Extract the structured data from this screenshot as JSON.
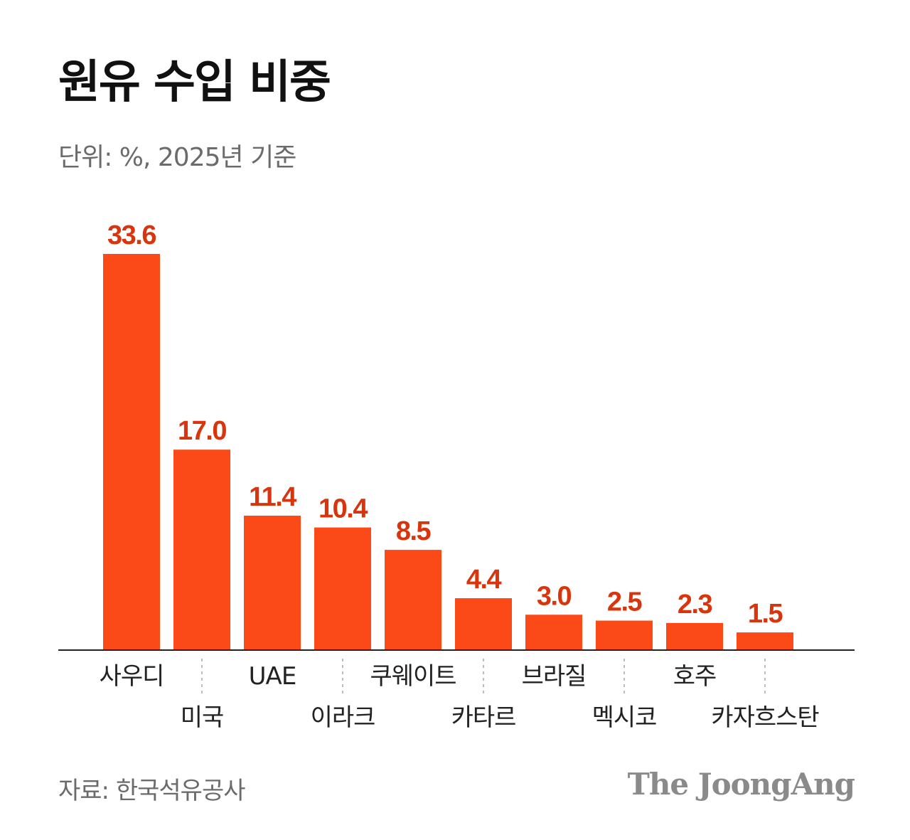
{
  "header": {
    "title": "원유 수입 비중",
    "subtitle": "단위: %, 2025년 기준"
  },
  "footer": {
    "source": "자료: 한국석유공사",
    "brand": "The JoongAng"
  },
  "colors": {
    "bar": "#fb4a18",
    "value_label": "#d9340b",
    "axis": "#222222",
    "divider": "#bdbdbd",
    "category_label": "#222222"
  },
  "chart_data": {
    "type": "bar",
    "title": "원유 수입 비중",
    "subtitle": "단위: %, 2025년 기준",
    "xlabel": "",
    "ylabel": "",
    "grid": false,
    "categories": [
      "사우디",
      "미국",
      "UAE",
      "이라크",
      "쿠웨이트",
      "카타르",
      "브라질",
      "멕시코",
      "호주",
      "카자흐스탄"
    ],
    "values": [
      33.6,
      17.0,
      11.4,
      10.4,
      8.5,
      4.4,
      3.0,
      2.5,
      2.3,
      1.5
    ],
    "value_labels": [
      "33.6",
      "17.0",
      "11.4",
      "10.4",
      "8.5",
      "4.4",
      "3.0",
      "2.5",
      "2.3",
      "1.5"
    ],
    "ylim": [
      0,
      33.6
    ]
  }
}
